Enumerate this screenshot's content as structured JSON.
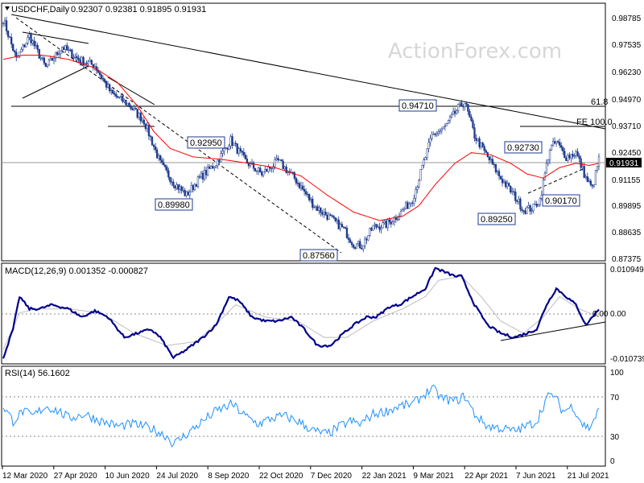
{
  "chart_data": {
    "type": "candlestick",
    "symbol": "USDCHF,Daily",
    "ohlc_readout": "0.92307 0.92381 0.91895 0.91931",
    "watermark": "ActionForex.com",
    "x_ticks": [
      "12 Mar 2020",
      "27 Apr 2020",
      "10 Jun 2020",
      "24 Jul 2020",
      "8 Sep 2020",
      "22 Oct 2020",
      "7 Dec 2020",
      "22 Jan 2021",
      "9 Mar 2021",
      "22 Apr 2021",
      "7 Jun 2021",
      "21 Jul 2021"
    ],
    "n_bars": 365,
    "price": {
      "ylim": [
        0.871,
        0.9925
      ],
      "y_ticks": [
        "0.98785",
        "0.97535",
        "0.96230",
        "0.94970",
        "0.93710",
        "0.92450",
        "0.91155",
        "0.89895",
        "0.88635",
        "0.87375"
      ],
      "current": "0.91931",
      "close_anchors": [
        [
          0,
          0.985
        ],
        [
          8,
          0.966
        ],
        [
          16,
          0.977
        ],
        [
          26,
          0.962
        ],
        [
          36,
          0.972
        ],
        [
          46,
          0.966
        ],
        [
          56,
          0.963
        ],
        [
          66,
          0.95
        ],
        [
          76,
          0.945
        ],
        [
          86,
          0.937
        ],
        [
          96,
          0.917
        ],
        [
          104,
          0.908
        ],
        [
          112,
          0.902
        ],
        [
          120,
          0.91
        ],
        [
          130,
          0.917
        ],
        [
          139,
          0.928
        ],
        [
          148,
          0.918
        ],
        [
          158,
          0.912
        ],
        [
          168,
          0.918
        ],
        [
          178,
          0.91
        ],
        [
          190,
          0.897
        ],
        [
          200,
          0.891
        ],
        [
          208,
          0.886
        ],
        [
          214,
          0.879
        ],
        [
          219,
          0.878
        ],
        [
          226,
          0.887
        ],
        [
          234,
          0.888
        ],
        [
          242,
          0.893
        ],
        [
          250,
          0.9
        ],
        [
          256,
          0.915
        ],
        [
          262,
          0.93
        ],
        [
          270,
          0.934
        ],
        [
          278,
          0.943
        ],
        [
          282,
          0.946
        ],
        [
          288,
          0.93
        ],
        [
          296,
          0.92
        ],
        [
          304,
          0.91
        ],
        [
          312,
          0.902
        ],
        [
          318,
          0.895
        ],
        [
          324,
          0.896
        ],
        [
          328,
          0.9
        ],
        [
          334,
          0.924
        ],
        [
          338,
          0.927
        ],
        [
          344,
          0.92
        ],
        [
          350,
          0.922
        ],
        [
          356,
          0.91
        ],
        [
          360,
          0.905
        ],
        [
          364,
          0.919
        ]
      ],
      "ma_anchors": [
        [
          0,
          0.966
        ],
        [
          12,
          0.968
        ],
        [
          24,
          0.968
        ],
        [
          40,
          0.966
        ],
        [
          56,
          0.962
        ],
        [
          70,
          0.955
        ],
        [
          82,
          0.944
        ],
        [
          92,
          0.932
        ],
        [
          102,
          0.924
        ],
        [
          116,
          0.92
        ],
        [
          132,
          0.919
        ],
        [
          150,
          0.917
        ],
        [
          166,
          0.915
        ],
        [
          182,
          0.911
        ],
        [
          198,
          0.902
        ],
        [
          214,
          0.894
        ],
        [
          230,
          0.89
        ],
        [
          244,
          0.892
        ],
        [
          254,
          0.897
        ],
        [
          264,
          0.907
        ],
        [
          276,
          0.917
        ],
        [
          286,
          0.922
        ],
        [
          298,
          0.921
        ],
        [
          310,
          0.917
        ],
        [
          320,
          0.912
        ],
        [
          330,
          0.91
        ],
        [
          340,
          0.915
        ],
        [
          350,
          0.917
        ],
        [
          358,
          0.916
        ],
        [
          364,
          0.917
        ]
      ],
      "labels": [
        "0.94710",
        "0.92950",
        "0.89980",
        "0.87560",
        "0.92730",
        "0.89250",
        "0.90170"
      ],
      "level_labels": [
        "61.8",
        "FE 100.0"
      ]
    },
    "macd": {
      "title": "MACD(12,26,9) 0.001352 -0.000827",
      "ylim": [
        -0.0125,
        0.0122
      ],
      "y_ticks": [
        "0.010949",
        "0.00",
        "-0.010739"
      ],
      "ref_tick": "0.00",
      "anchors": [
        [
          0,
          -0.011
        ],
        [
          6,
          -0.004
        ],
        [
          10,
          0.004
        ],
        [
          16,
          0.001
        ],
        [
          22,
          0.001
        ],
        [
          30,
          0.002
        ],
        [
          40,
          0.001
        ],
        [
          48,
          -0.001
        ],
        [
          56,
          0.0005
        ],
        [
          64,
          -0.001
        ],
        [
          74,
          -0.006
        ],
        [
          82,
          -0.005
        ],
        [
          90,
          -0.004
        ],
        [
          96,
          -0.006
        ],
        [
          104,
          -0.011
        ],
        [
          112,
          -0.009
        ],
        [
          122,
          -0.006
        ],
        [
          130,
          -0.003
        ],
        [
          138,
          0.004
        ],
        [
          144,
          0.003
        ],
        [
          152,
          -0.001
        ],
        [
          160,
          -0.002
        ],
        [
          168,
          -0.002
        ],
        [
          176,
          -0.001
        ],
        [
          184,
          -0.004
        ],
        [
          192,
          -0.008
        ],
        [
          200,
          -0.008
        ],
        [
          208,
          -0.005
        ],
        [
          214,
          -0.003
        ],
        [
          222,
          -0.001
        ],
        [
          228,
          -0.001
        ],
        [
          236,
          0.0015
        ],
        [
          242,
          0.002
        ],
        [
          250,
          0.004
        ],
        [
          258,
          0.006
        ],
        [
          264,
          0.011
        ],
        [
          270,
          0.01
        ],
        [
          276,
          0.009
        ],
        [
          280,
          0.009
        ],
        [
          288,
          0.002
        ],
        [
          296,
          -0.003
        ],
        [
          304,
          -0.005
        ],
        [
          312,
          -0.006
        ],
        [
          320,
          -0.005
        ],
        [
          326,
          -0.004
        ],
        [
          332,
          0.002
        ],
        [
          338,
          0.006
        ],
        [
          344,
          0.004
        ],
        [
          350,
          0.002
        ],
        [
          356,
          -0.003
        ],
        [
          360,
          -0.001
        ],
        [
          364,
          0.001
        ]
      ],
      "signal_anchors": [
        [
          0,
          -0.009
        ],
        [
          10,
          0.0
        ],
        [
          20,
          0.001
        ],
        [
          40,
          0.001
        ],
        [
          60,
          0.0
        ],
        [
          80,
          -0.005
        ],
        [
          100,
          -0.008
        ],
        [
          118,
          -0.007
        ],
        [
          132,
          -0.002
        ],
        [
          142,
          0.002
        ],
        [
          160,
          -0.001
        ],
        [
          180,
          -0.002
        ],
        [
          196,
          -0.006
        ],
        [
          210,
          -0.006
        ],
        [
          226,
          -0.002
        ],
        [
          244,
          0.001
        ],
        [
          258,
          0.004
        ],
        [
          266,
          0.008
        ],
        [
          280,
          0.009
        ],
        [
          292,
          0.004
        ],
        [
          304,
          -0.002
        ],
        [
          318,
          -0.005
        ],
        [
          330,
          -0.001
        ],
        [
          340,
          0.004
        ],
        [
          352,
          0.001
        ],
        [
          364,
          -0.001
        ]
      ]
    },
    "rsi": {
      "title": "RSI(14) 56.1602",
      "ylim": [
        0,
        100
      ],
      "y_ticks": [
        "100",
        "70",
        "30",
        "0"
      ],
      "levels": [
        70,
        30
      ],
      "anchors": [
        [
          0,
          60
        ],
        [
          6,
          45
        ],
        [
          12,
          55
        ],
        [
          18,
          50
        ],
        [
          26,
          60
        ],
        [
          34,
          55
        ],
        [
          40,
          48
        ],
        [
          50,
          52
        ],
        [
          60,
          45
        ],
        [
          70,
          40
        ],
        [
          80,
          42
        ],
        [
          90,
          38
        ],
        [
          100,
          30
        ],
        [
          104,
          22
        ],
        [
          112,
          32
        ],
        [
          122,
          45
        ],
        [
          130,
          55
        ],
        [
          140,
          62
        ],
        [
          148,
          50
        ],
        [
          156,
          42
        ],
        [
          164,
          48
        ],
        [
          172,
          50
        ],
        [
          180,
          45
        ],
        [
          190,
          35
        ],
        [
          198,
          32
        ],
        [
          206,
          40
        ],
        [
          212,
          45
        ],
        [
          218,
          42
        ],
        [
          226,
          52
        ],
        [
          234,
          55
        ],
        [
          242,
          60
        ],
        [
          250,
          62
        ],
        [
          256,
          70
        ],
        [
          262,
          78
        ],
        [
          268,
          68
        ],
        [
          276,
          65
        ],
        [
          282,
          70
        ],
        [
          288,
          52
        ],
        [
          296,
          40
        ],
        [
          304,
          38
        ],
        [
          312,
          35
        ],
        [
          320,
          40
        ],
        [
          326,
          45
        ],
        [
          332,
          68
        ],
        [
          336,
          72
        ],
        [
          342,
          55
        ],
        [
          348,
          60
        ],
        [
          354,
          42
        ],
        [
          358,
          38
        ],
        [
          364,
          56
        ]
      ]
    }
  }
}
